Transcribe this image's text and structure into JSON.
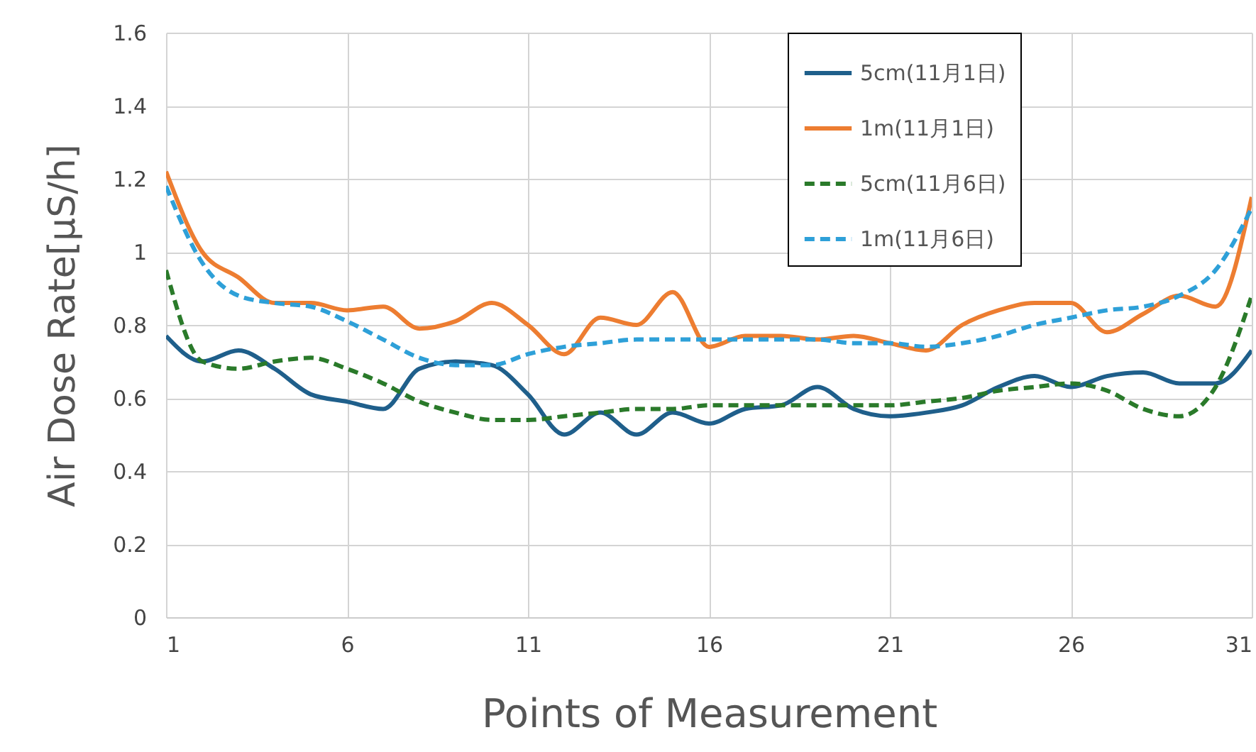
{
  "chart_data": {
    "type": "line",
    "xlabel": "Points of Measurement",
    "ylabel": "Air Dose Rate[μS/h]",
    "x": [
      1,
      2,
      3,
      4,
      5,
      6,
      7,
      8,
      9,
      10,
      11,
      12,
      13,
      14,
      15,
      16,
      17,
      18,
      19,
      20,
      21,
      22,
      23,
      24,
      25,
      26,
      27,
      28,
      29,
      30,
      31
    ],
    "series": [
      {
        "name": "5cm(11月1日)",
        "color": "#1f5f8b",
        "line_style": "solid",
        "values": [
          0.77,
          0.7,
          0.73,
          0.68,
          0.61,
          0.59,
          0.57,
          0.68,
          0.7,
          0.69,
          0.61,
          0.5,
          0.56,
          0.5,
          0.56,
          0.53,
          0.57,
          0.58,
          0.63,
          0.57,
          0.55,
          0.56,
          0.58,
          0.63,
          0.66,
          0.63,
          0.66,
          0.67,
          0.64,
          0.64,
          0.73
        ]
      },
      {
        "name": "1m(11月1日)",
        "color": "#ed7d31",
        "line_style": "solid",
        "values": [
          1.22,
          1.0,
          0.93,
          0.86,
          0.86,
          0.84,
          0.85,
          0.79,
          0.81,
          0.86,
          0.8,
          0.72,
          0.82,
          0.8,
          0.89,
          0.74,
          0.77,
          0.77,
          0.76,
          0.77,
          0.75,
          0.73,
          0.8,
          0.84,
          0.86,
          0.86,
          0.78,
          0.83,
          0.88,
          0.85,
          1.15
        ]
      },
      {
        "name": "5cm(11月6日)",
        "color": "#2a7a2a",
        "line_style": "dashed",
        "values": [
          0.95,
          0.7,
          0.68,
          0.7,
          0.71,
          0.68,
          0.64,
          0.59,
          0.56,
          0.54,
          0.54,
          0.55,
          0.56,
          0.57,
          0.57,
          0.58,
          0.58,
          0.58,
          0.58,
          0.58,
          0.58,
          0.59,
          0.6,
          0.62,
          0.63,
          0.64,
          0.62,
          0.57,
          0.55,
          0.63,
          0.88
        ]
      },
      {
        "name": "1m(11月6日)",
        "color": "#2ea0d8",
        "line_style": "dashed",
        "values": [
          1.18,
          0.97,
          0.88,
          0.86,
          0.85,
          0.81,
          0.76,
          0.71,
          0.69,
          0.69,
          0.72,
          0.74,
          0.75,
          0.76,
          0.76,
          0.76,
          0.76,
          0.76,
          0.76,
          0.75,
          0.75,
          0.74,
          0.75,
          0.77,
          0.8,
          0.82,
          0.84,
          0.85,
          0.88,
          0.95,
          1.12
        ]
      }
    ],
    "xlim": [
      1,
      31
    ],
    "xticks": [
      1,
      6,
      11,
      16,
      21,
      26,
      31
    ],
    "ylim": [
      0,
      1.6
    ],
    "yticks": [
      {
        "value": 0,
        "label": "0"
      },
      0.2,
      0.4,
      0.6,
      0.8,
      {
        "value": 1,
        "label": "1"
      },
      1.2,
      1.4,
      1.6
    ],
    "grid": true,
    "legend": "top right"
  }
}
